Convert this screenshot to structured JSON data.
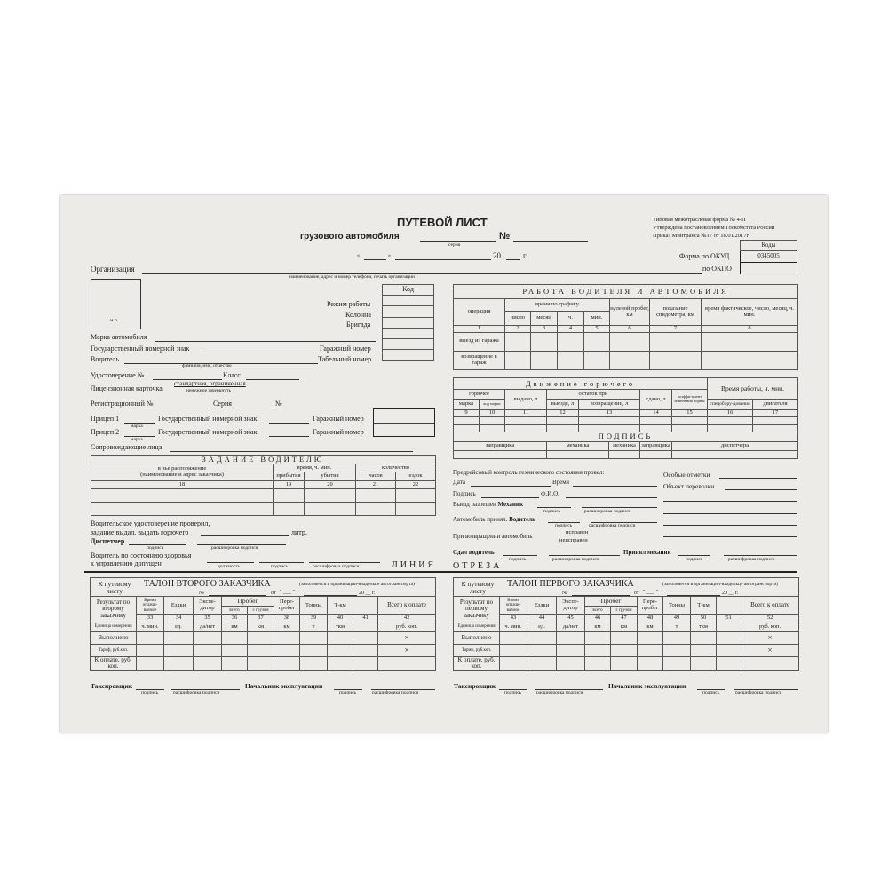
{
  "header": {
    "title": "ПУТЕВОЙ ЛИСТ",
    "subtitle": "грузового автомобиля",
    "number_sign": "№",
    "series_caption": "серия",
    "date_open": "«",
    "date_close": "»",
    "year_prefix": "20",
    "year_suffix": "г.",
    "form_type": "Типовая межотраслевая форма № 4-П",
    "approved": "Утверждена постановлением Госкомстата России",
    "order": "Приказ Минтранса №17 от 18.01.2017г.",
    "codes_label": "Коды",
    "okud_label": "Форма по ОКУД",
    "okud_code": "0345005",
    "okpo_label": "по ОКПО"
  },
  "org": {
    "label": "Организация",
    "caption": "наименование, адрес и номер телефона, печать организации",
    "stamp": "м.п."
  },
  "codes": {
    "header": "Код",
    "work_mode": "Режим работы",
    "column": "Колонна",
    "brigade": "Бригада"
  },
  "vehicle": {
    "brand": "Марка автомобиля",
    "plate": "Государственный номерной знак",
    "garage": "Гаражный номер",
    "driver": "Водитель",
    "driver_caption": "фамилия, имя, отчество",
    "tab": "Табельный номер",
    "license": "Удостоверение №",
    "class": "Класс",
    "card": "Лицензионная карточка",
    "card_opts": "стандартная, ограниченная",
    "card_caption": "ненужное зачеркнуть",
    "reg": "Регистрационный №",
    "series": "Серия",
    "num": "№",
    "trailer1": "Прицеп 1",
    "trailer2": "Прицеп 2",
    "brand_caption": "марка",
    "escort": "Сопровождающие лица:"
  },
  "task": {
    "title": "ЗАДАНИЕ ВОДИТЕЛЮ",
    "c1a": "в чье распоряжение",
    "c1b": "(наименование и адрес заказчика)",
    "time": "время, ч. мин.",
    "arrive": "прибытия",
    "depart": "убытия",
    "qty": "количество",
    "hours": "часов",
    "trips": "ездок",
    "n": [
      "18",
      "19",
      "20",
      "21",
      "22"
    ]
  },
  "dispatch": {
    "l1": "Водительское удостоверение проверил,",
    "l2": "задание выдал, выдать горючего",
    "litr": "литр.",
    "dispatcher": "Диспетчер",
    "sign": "подпись",
    "decode": "расшифровка подписи",
    "h1": "Водитель  по  состоянию здоровья",
    "h2": "к управлению  допущен",
    "position": "должность"
  },
  "cut": {
    "left": "ЛИНИЯ",
    "right": "ОТРЕЗА"
  },
  "work": {
    "title": "РАБОТА ВОДИТЕЛЯ И АВТОМОБИЛЯ",
    "op": "операция",
    "sched": "время по графику",
    "day": "число",
    "month": "месяц",
    "h": "ч.",
    "min": "мин.",
    "zero": "нулевой пробег, км",
    "speedo": "показание спидометра, км",
    "actual": "время фактическое, число, месяц, ч. мин.",
    "n": [
      "1",
      "2",
      "3",
      "4",
      "5",
      "6",
      "7",
      "8"
    ],
    "out": "выезд из гаража",
    "back": "возвращение в гараж"
  },
  "fuel": {
    "title": "Движение горючего",
    "worktime": "Время работы, ч. мин.",
    "fuel": "горючее",
    "issued": "выдано, л",
    "rest": "остаток при",
    "brand": "марка",
    "code": "код марки",
    "out": "выезде, л",
    "back": "возвращении, л",
    "given": "сдано, л",
    "coef": "коэффи-циент изменения нормы",
    "equip": "спецобору-дования",
    "engine": "двигателя",
    "n": [
      "9",
      "10",
      "11",
      "12",
      "13",
      "14",
      "15",
      "16",
      "17"
    ],
    "sig_title": "ПОДПИСЬ",
    "s1": "заправщика",
    "s2": "механика",
    "s3": "механика",
    "s4": "заправщика",
    "s5": "диспетчера"
  },
  "control": {
    "pre": "Предрейсовый контроль технического состояния провел:",
    "date": "Дата",
    "time": "Время",
    "sign": "Подпись",
    "fio": "Ф.И.О.",
    "exit": "Выезд разрешен",
    "mech": "Механик",
    "accepted": "Автомобиль принял.",
    "driver": "Водитель",
    "return": "При возвращении автомобиль",
    "ok": "исправен",
    "nok": "неисправен",
    "handed": "Сдал водитель",
    "received": "Принял механик",
    "special": "Особые отметки",
    "object": "Объект перевозки"
  },
  "talons": [
    {
      "to": "К путевому листу",
      "title": "ТАЛОН ВТОРОГО ЗАКАЗЧИКА",
      "note": "(заполняется в организации-владельце автотранспорта)",
      "num": "№",
      "from": "от",
      "q": "\" ___ \"",
      "year": "20 __ г.",
      "result": "Результат по второму заказчику",
      "cols": [
        "Время оплачи-ваемое",
        "Ездки",
        "Экспе-дитор",
        "всего",
        "с грузом",
        "Пере-пробег",
        "Тонны",
        "Т-км",
        "",
        "Всего к оплате"
      ],
      "mileage": "Пробег",
      "n": [
        "33",
        "34",
        "35",
        "36",
        "37",
        "38",
        "39",
        "40",
        "41",
        "42"
      ]
    },
    {
      "to": "К путевому листу",
      "title": "ТАЛОН ПЕРВОГО ЗАКАЗЧИКА",
      "note": "(заполняется в организации-владельце автотранспорта)",
      "num": "№",
      "from": "от",
      "q": "\" ___ \"",
      "year": "20 __ г.",
      "result": "Результат по первому заказчику",
      "cols": [
        "Время оплачи-ваемое",
        "Ездки",
        "Экспе-дитор",
        "всего",
        "с грузом",
        "Пере-пробег",
        "Тонны",
        "Т-км",
        "",
        "Всего к оплате"
      ],
      "mileage": "Пробег",
      "n": [
        "43",
        "44",
        "45",
        "46",
        "47",
        "48",
        "49",
        "50",
        "51",
        "52"
      ]
    }
  ],
  "talon_common": {
    "unit": "Единица измерения",
    "units": [
      "ч. мин.",
      "ед.",
      "да/нет",
      "км",
      "км",
      "км",
      "т",
      "ткм",
      "",
      "руб. коп."
    ],
    "done": "Выполнено",
    "tariff": "Тариф, руб.коп.",
    "pay": "К оплате, руб. коп.",
    "x": "×",
    "taxer": "Таксировщик",
    "chief": "Начальник эксплуатации",
    "sign": "подпись",
    "decode": "расшифровка подписи"
  }
}
